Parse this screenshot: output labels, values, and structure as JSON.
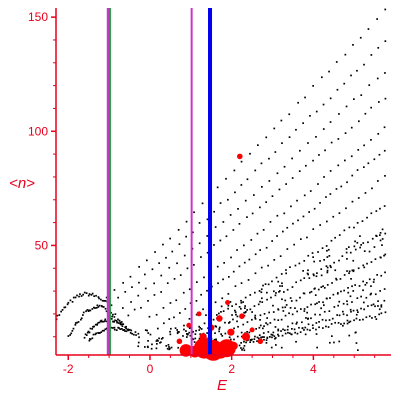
{
  "chart_data": {
    "type": "scatter",
    "title": "",
    "xlabel": "E",
    "ylabel": "<n>",
    "xlim": [
      -2.3,
      5.9
    ],
    "ylim": [
      2,
      154
    ],
    "xticks": [
      -2,
      0,
      2,
      4
    ],
    "yticks": [
      50,
      100,
      150
    ],
    "grid": false,
    "legend": "none",
    "colors": {
      "axis": "#e8001c",
      "points": "#000000",
      "highlight": "#ff0000",
      "green_line": "#1e9e3a",
      "magenta_line": "#cc33cc",
      "blue_line": "#0000ee"
    },
    "vertical_lines": [
      {
        "x": -1.02,
        "color": "#cc33cc",
        "width": 3
      },
      {
        "x": -0.98,
        "color": "#1e9e3a",
        "width": 2
      },
      {
        "x": 1.02,
        "color": "#cc33cc",
        "width": 2
      },
      {
        "x": 1.47,
        "color": "#0000ee",
        "width": 4
      }
    ],
    "bands": [
      {
        "x0": -2.3,
        "y0": 18,
        "x1": -1.0,
        "y1": 24,
        "peak": 25.5
      },
      {
        "x0": -2.0,
        "y0": 10,
        "x1": -0.7,
        "y1": 15,
        "peak": 20.5
      },
      {
        "x0": -1.6,
        "y0": 10,
        "x1": -0.5,
        "y1": 13,
        "peak": 16.0
      },
      {
        "x0": -1.5,
        "y0": 9,
        "x1": -0.3,
        "y1": 11,
        "peak": 12.5
      },
      {
        "x0": -1.05,
        "y0": 27,
        "x1": 5.75,
        "y1": 153,
        "peak": 0
      },
      {
        "x0": -0.95,
        "y0": 24,
        "x1": 5.75,
        "y1": 139,
        "peak": 0
      },
      {
        "x0": -0.85,
        "y0": 20,
        "x1": 5.75,
        "y1": 126,
        "peak": 0
      },
      {
        "x0": -0.7,
        "y0": 17,
        "x1": 5.75,
        "y1": 115,
        "peak": 0
      },
      {
        "x0": 0.0,
        "y0": 18,
        "x1": 5.75,
        "y1": 102,
        "peak": 0
      },
      {
        "x0": 0.2,
        "y0": 14,
        "x1": 5.75,
        "y1": 92,
        "peak": 0
      },
      {
        "x0": 0.5,
        "y0": 12,
        "x1": 5.75,
        "y1": 80,
        "peak": 0
      },
      {
        "x0": 0.8,
        "y0": 10,
        "x1": 5.75,
        "y1": 68,
        "peak": 0
      },
      {
        "x0": 1.1,
        "y0": 9,
        "x1": 5.75,
        "y1": 56,
        "peak": 0
      },
      {
        "x0": 1.4,
        "y0": 8,
        "x1": 5.75,
        "y1": 46,
        "peak": 0
      },
      {
        "x0": 1.7,
        "y0": 7,
        "x1": 5.75,
        "y1": 38,
        "peak": 0
      },
      {
        "x0": 2.0,
        "y0": 6,
        "x1": 5.75,
        "y1": 31,
        "peak": 0
      },
      {
        "x0": 2.2,
        "y0": 7,
        "x1": 5.75,
        "y1": 25,
        "peak": 0
      },
      {
        "x0": 2.4,
        "y0": 8,
        "x1": 5.75,
        "y1": 20,
        "peak": 0
      }
    ],
    "highlight_points": [
      {
        "x": 1.33,
        "y": 5,
        "size": 1.0
      },
      {
        "x": 1.55,
        "y": 4,
        "size": 1.0
      },
      {
        "x": 1.88,
        "y": 5,
        "size": 0.85
      },
      {
        "x": 1.72,
        "y": 4,
        "size": 0.75
      },
      {
        "x": 0.88,
        "y": 4,
        "size": 0.55
      },
      {
        "x": 1.1,
        "y": 3.5,
        "size": 0.5
      },
      {
        "x": 2.35,
        "y": 10,
        "size": 0.3
      },
      {
        "x": 1.98,
        "y": 12,
        "size": 0.25
      },
      {
        "x": 1.3,
        "y": 10,
        "size": 0.25
      },
      {
        "x": 1.7,
        "y": 18,
        "size": 0.2
      },
      {
        "x": 2.25,
        "y": 19,
        "size": 0.15
      },
      {
        "x": 1.5,
        "y": 14,
        "size": 0.2
      },
      {
        "x": 2.2,
        "y": 89,
        "size": 0.15
      },
      {
        "x": 0.95,
        "y": 15,
        "size": 0.12
      },
      {
        "x": 2.5,
        "y": 13,
        "size": 0.12
      },
      {
        "x": 1.9,
        "y": 25,
        "size": 0.12
      },
      {
        "x": 0.72,
        "y": 8,
        "size": 0.15
      },
      {
        "x": 2.05,
        "y": 6,
        "size": 0.3
      },
      {
        "x": 2.7,
        "y": 8,
        "size": 0.15
      },
      {
        "x": 1.2,
        "y": 20,
        "size": 0.12
      }
    ]
  }
}
